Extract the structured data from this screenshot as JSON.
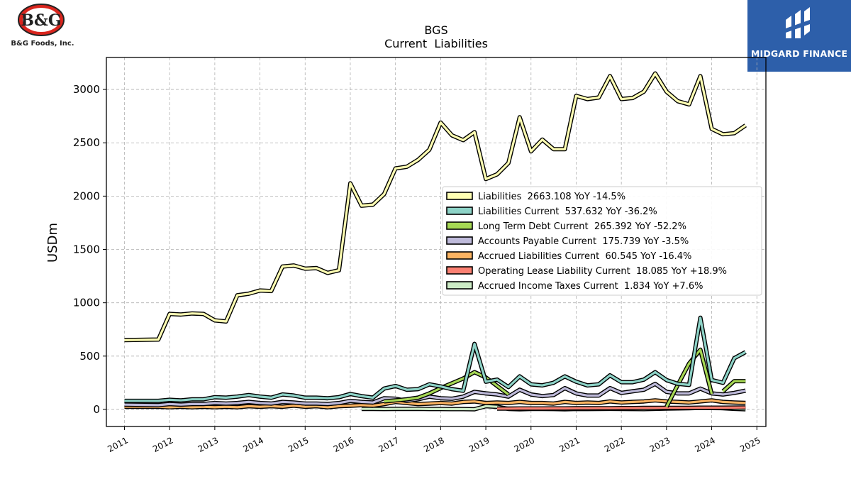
{
  "branding": {
    "company_logo_text": "B&G",
    "company_name": "B&G Foods, Inc.",
    "publisher_name": "MIDGARD FINANCE"
  },
  "chart_data": {
    "type": "line",
    "title": "BGS",
    "subtitle": "Current  Liabilities",
    "xlabel": "",
    "ylabel": "USDm",
    "xlim": [
      2010.6,
      2025.2
    ],
    "ylim": [
      -160,
      3300
    ],
    "x_ticks": [
      2011,
      2012,
      2013,
      2014,
      2015,
      2016,
      2017,
      2018,
      2019,
      2020,
      2021,
      2022,
      2023,
      2024,
      2025
    ],
    "x_tick_labels": [
      "2011",
      "2012",
      "2013",
      "2014",
      "2015",
      "2016",
      "2017",
      "2018",
      "2019",
      "2020",
      "2021",
      "2022",
      "2023",
      "2024",
      "2025"
    ],
    "y_ticks": [
      0,
      500,
      1000,
      1500,
      2000,
      2500,
      3000
    ],
    "y_tick_labels": [
      "0",
      "500",
      "1000",
      "1500",
      "2000",
      "2500",
      "3000"
    ],
    "grid": true,
    "legend_position": "center-right",
    "series": [
      {
        "name": "Liabilities",
        "legend": "Liabilities  2663.108 YoY -14.5%",
        "color": "#ffffb3",
        "x": [
          2011.0,
          2011.75,
          2012.0,
          2012.25,
          2012.5,
          2012.75,
          2013.0,
          2013.25,
          2013.5,
          2013.75,
          2014.0,
          2014.25,
          2014.5,
          2014.75,
          2015.0,
          2015.25,
          2015.5,
          2015.75,
          2016.0,
          2016.25,
          2016.5,
          2016.75,
          2017.0,
          2017.25,
          2017.5,
          2017.75,
          2018.0,
          2018.25,
          2018.5,
          2018.75,
          2019.0,
          2019.25,
          2019.5,
          2019.75,
          2020.0,
          2020.25,
          2020.5,
          2020.75,
          2021.0,
          2021.25,
          2021.5,
          2021.75,
          2022.0,
          2022.25,
          2022.5,
          2022.75,
          2023.0,
          2023.25,
          2023.5,
          2023.75,
          2024.0,
          2024.25,
          2024.5,
          2024.75
        ],
        "y": [
          650,
          655,
          895,
          890,
          900,
          895,
          835,
          825,
          1070,
          1085,
          1115,
          1110,
          1340,
          1350,
          1320,
          1325,
          1280,
          1305,
          2120,
          1910,
          1920,
          2020,
          2260,
          2275,
          2340,
          2435,
          2690,
          2570,
          2525,
          2600,
          2160,
          2205,
          2310,
          2740,
          2420,
          2530,
          2440,
          2440,
          2940,
          2910,
          2925,
          3125,
          2910,
          2920,
          2980,
          3150,
          2980,
          2890,
          2860,
          3125,
          2630,
          2580,
          2590,
          2663
        ]
      },
      {
        "name": "Liabilities Current",
        "legend": "Liabilities Current  537.632 YoY -36.2%",
        "color": "#8dd3c7",
        "x": [
          2011.0,
          2011.75,
          2012.0,
          2012.25,
          2012.5,
          2012.75,
          2013.0,
          2013.25,
          2013.5,
          2013.75,
          2014.0,
          2014.25,
          2014.5,
          2014.75,
          2015.0,
          2015.25,
          2015.5,
          2015.75,
          2016.0,
          2016.25,
          2016.5,
          2016.75,
          2017.0,
          2017.25,
          2017.5,
          2017.75,
          2018.0,
          2018.25,
          2018.5,
          2018.75,
          2019.0,
          2019.25,
          2019.5,
          2019.75,
          2020.0,
          2020.25,
          2020.5,
          2020.75,
          2021.0,
          2021.25,
          2021.5,
          2021.75,
          2022.0,
          2022.25,
          2022.5,
          2022.75,
          2023.0,
          2023.25,
          2023.5,
          2023.75,
          2024.0,
          2024.25,
          2024.5,
          2024.75
        ],
        "y": [
          80,
          80,
          90,
          85,
          95,
          95,
          115,
          110,
          120,
          135,
          120,
          110,
          140,
          130,
          110,
          110,
          105,
          115,
          145,
          125,
          110,
          195,
          220,
          185,
          190,
          235,
          215,
          190,
          175,
          615,
          260,
          280,
          210,
          310,
          235,
          225,
          250,
          310,
          260,
          225,
          235,
          320,
          255,
          255,
          280,
          350,
          275,
          240,
          230,
          860,
          275,
          250,
          480,
          538
        ]
      },
      {
        "name": "Long Term Debt Current",
        "legend": "Long Term Debt Current  265.392 YoY -52.2%",
        "color": "#a6d854",
        "x": [
          2016.75,
          2017.0,
          2017.25,
          2017.5,
          2017.75,
          2018.0,
          2018.25,
          2018.5,
          2018.75,
          2019.0,
          2019.25,
          2019.5,
          null,
          2023.0,
          2023.25,
          2023.5,
          2023.75,
          2024.0,
          null,
          2024.25,
          2024.5,
          2024.75
        ],
        "y": [
          75,
          85,
          95,
          110,
          150,
          200,
          245,
          290,
          350,
          300,
          220,
          140,
          null,
          25,
          230,
          430,
          560,
          145,
          null,
          170,
          265,
          265
        ]
      },
      {
        "name": "Accounts Payable Current",
        "legend": "Accounts Payable Current  175.739 YoY -3.5%",
        "color": "#bebada",
        "x": [
          2011.0,
          2011.75,
          2012.0,
          2012.25,
          2012.5,
          2012.75,
          2013.0,
          2013.25,
          2013.5,
          2013.75,
          2014.0,
          2014.25,
          2014.5,
          2014.75,
          2015.0,
          2015.25,
          2015.5,
          2015.75,
          2016.0,
          2016.25,
          2016.5,
          2016.75,
          2017.0,
          2017.25,
          2017.5,
          2017.75,
          2018.0,
          2018.25,
          2018.5,
          2018.75,
          2019.0,
          2019.25,
          2019.5,
          2019.75,
          2020.0,
          2020.25,
          2020.5,
          2020.75,
          2021.0,
          2021.25,
          2021.5,
          2021.75,
          2022.0,
          2022.25,
          2022.5,
          2022.75,
          2023.0,
          2023.25,
          2023.5,
          2023.75,
          2024.0,
          2024.25,
          2024.5,
          2024.75
        ],
        "y": [
          45,
          40,
          50,
          45,
          50,
          50,
          60,
          55,
          60,
          70,
          60,
          55,
          70,
          65,
          55,
          55,
          50,
          60,
          80,
          70,
          65,
          105,
          100,
          80,
          95,
          120,
          105,
          100,
          120,
          165,
          150,
          140,
          120,
          185,
          140,
          125,
          135,
          200,
          150,
          130,
          130,
          200,
          155,
          170,
          185,
          240,
          165,
          150,
          150,
          195,
          150,
          140,
          155,
          176
        ]
      },
      {
        "name": "Accrued Liabilities Current",
        "legend": "Accrued Liabilities Current  60.545 YoY -16.4%",
        "color": "#fdb462",
        "x": [
          2011.0,
          2011.75,
          2012.0,
          2012.25,
          2012.5,
          2012.75,
          2013.0,
          2013.25,
          2013.5,
          2013.75,
          2014.0,
          2014.25,
          2014.5,
          2014.75,
          2015.0,
          2015.25,
          2015.5,
          2015.75,
          2016.0,
          2016.25,
          2016.5,
          2016.75,
          2017.0,
          2017.25,
          2017.5,
          2017.75,
          2018.0,
          2018.25,
          2018.5,
          2018.75,
          2019.0,
          2019.25,
          2019.5,
          2019.75,
          2020.0,
          2020.25,
          2020.5,
          2020.75,
          2021.0,
          2021.25,
          2021.5,
          2021.75,
          2022.0,
          2022.25,
          2022.5,
          2022.75,
          2023.0,
          2023.25,
          2023.5,
          2023.75,
          2024.0,
          2024.25,
          2024.5,
          2024.75
        ],
        "y": [
          25,
          25,
          20,
          25,
          20,
          25,
          20,
          25,
          20,
          30,
          25,
          30,
          25,
          35,
          25,
          30,
          20,
          30,
          35,
          40,
          35,
          50,
          70,
          60,
          50,
          55,
          60,
          55,
          70,
          75,
          60,
          65,
          60,
          70,
          60,
          60,
          55,
          70,
          60,
          65,
          60,
          75,
          65,
          70,
          75,
          85,
          75,
          70,
          65,
          75,
          85,
          70,
          65,
          61
        ]
      },
      {
        "name": "Operating Lease Liability Current",
        "legend": "Operating Lease Liability Current  18.085 YoY +18.9%",
        "color": "#fb8072",
        "x": [
          2019.25,
          2019.5,
          2019.75,
          2020.0,
          2020.25,
          2020.5,
          2020.75,
          2021.0,
          2021.25,
          2021.5,
          2021.75,
          2022.0,
          2022.25,
          2022.5,
          2022.75,
          2023.0,
          2023.25,
          2023.5,
          2023.75,
          2024.0,
          2024.25,
          2024.5,
          2024.75
        ],
        "y": [
          8,
          8,
          9,
          9,
          9,
          10,
          10,
          11,
          11,
          12,
          12,
          13,
          13,
          14,
          14,
          15,
          15,
          15,
          16,
          16,
          16,
          17,
          18
        ]
      },
      {
        "name": "Accrued Income Taxes Current",
        "legend": "Accrued Income Taxes Current  1.834 YoY +7.6%",
        "color": "#ccebc5",
        "x": [
          2016.25,
          2016.5,
          2016.75,
          2017.0,
          2017.25,
          2017.5,
          2017.75,
          2018.0,
          2018.25,
          2018.5,
          2018.75,
          2019.0,
          2019.25,
          2019.5,
          2019.75,
          2020.0,
          2020.25,
          2020.5,
          2020.75,
          2021.0,
          2021.25,
          2021.5,
          2021.75,
          2022.0,
          2022.25,
          2022.5,
          2022.75,
          2023.0,
          2023.25,
          2023.5,
          2023.75,
          2024.0,
          2024.25,
          2024.5,
          2024.75
        ],
        "y": [
          5,
          5,
          4,
          5,
          5,
          6,
          4,
          4,
          3,
          3,
          2,
          30,
          25,
          5,
          2,
          5,
          5,
          4,
          2,
          5,
          4,
          5,
          6,
          5,
          4,
          3,
          6,
          8,
          10,
          12,
          14,
          13,
          12,
          6,
          2
        ]
      }
    ]
  }
}
